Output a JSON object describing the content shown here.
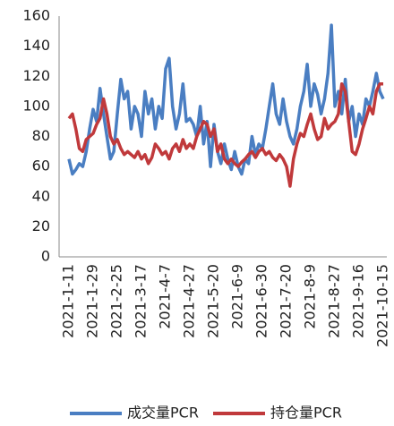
{
  "chart_data": {
    "type": "line",
    "categories": [
      "2021-1-11",
      null,
      null,
      null,
      null,
      null,
      null,
      "2021-1-29",
      null,
      null,
      null,
      null,
      null,
      null,
      "2021-2-25",
      null,
      null,
      null,
      null,
      null,
      null,
      "2021-3-17",
      null,
      null,
      null,
      null,
      null,
      null,
      "2021-4-7",
      null,
      null,
      null,
      null,
      null,
      null,
      "2021-4-27",
      null,
      null,
      null,
      null,
      null,
      null,
      "2021-5-20",
      null,
      null,
      null,
      null,
      null,
      null,
      "2021-6-9",
      null,
      null,
      null,
      null,
      null,
      null,
      "2021-6-30",
      null,
      null,
      null,
      null,
      null,
      null,
      "2021-7-20",
      null,
      null,
      null,
      null,
      null,
      null,
      "2021-8-9",
      null,
      null,
      null,
      null,
      null,
      null,
      "2021-8-27",
      null,
      null,
      null,
      null,
      null,
      null,
      "2021-9-16",
      null,
      null,
      null,
      null,
      null,
      null,
      "2021-10-15"
    ],
    "series": [
      {
        "name": "成交量PCR",
        "color": "#4a7ec2",
        "values": [
          65,
          55,
          58,
          62,
          60,
          70,
          85,
          98,
          90,
          112,
          95,
          80,
          65,
          70,
          95,
          118,
          105,
          110,
          85,
          100,
          95,
          80,
          110,
          95,
          105,
          85,
          100,
          92,
          125,
          132,
          100,
          85,
          95,
          115,
          90,
          92,
          88,
          80,
          100,
          75,
          90,
          60,
          88,
          70,
          62,
          75,
          65,
          58,
          70,
          60,
          55,
          65,
          62,
          80,
          68,
          75,
          72,
          85,
          100,
          115,
          95,
          88,
          105,
          90,
          80,
          75,
          85,
          100,
          110,
          128,
          100,
          115,
          108,
          95,
          105,
          122,
          154,
          100,
          110,
          95,
          118,
          90,
          100,
          80,
          95,
          88,
          105,
          100,
          110,
          122,
          110,
          105
        ]
      },
      {
        "name": "持仓量PCR",
        "color": "#c0393b",
        "values": [
          92,
          95,
          85,
          72,
          70,
          78,
          80,
          82,
          88,
          92,
          105,
          95,
          80,
          75,
          78,
          72,
          68,
          70,
          68,
          66,
          70,
          65,
          68,
          62,
          66,
          75,
          72,
          68,
          70,
          65,
          72,
          75,
          70,
          78,
          72,
          75,
          72,
          80,
          85,
          90,
          88,
          80,
          85,
          70,
          75,
          65,
          62,
          65,
          62,
          60,
          63,
          65,
          68,
          70,
          66,
          70,
          72,
          68,
          70,
          66,
          64,
          68,
          65,
          60,
          47,
          65,
          75,
          82,
          80,
          88,
          95,
          85,
          78,
          80,
          92,
          85,
          88,
          90,
          95,
          115,
          110,
          90,
          70,
          68,
          75,
          85,
          92,
          100,
          95,
          110,
          115,
          115
        ]
      }
    ],
    "ylim": [
      0,
      160
    ],
    "yticks": [
      0,
      20,
      40,
      60,
      80,
      100,
      120,
      140,
      160
    ],
    "grid": false,
    "legend": "bottom"
  }
}
